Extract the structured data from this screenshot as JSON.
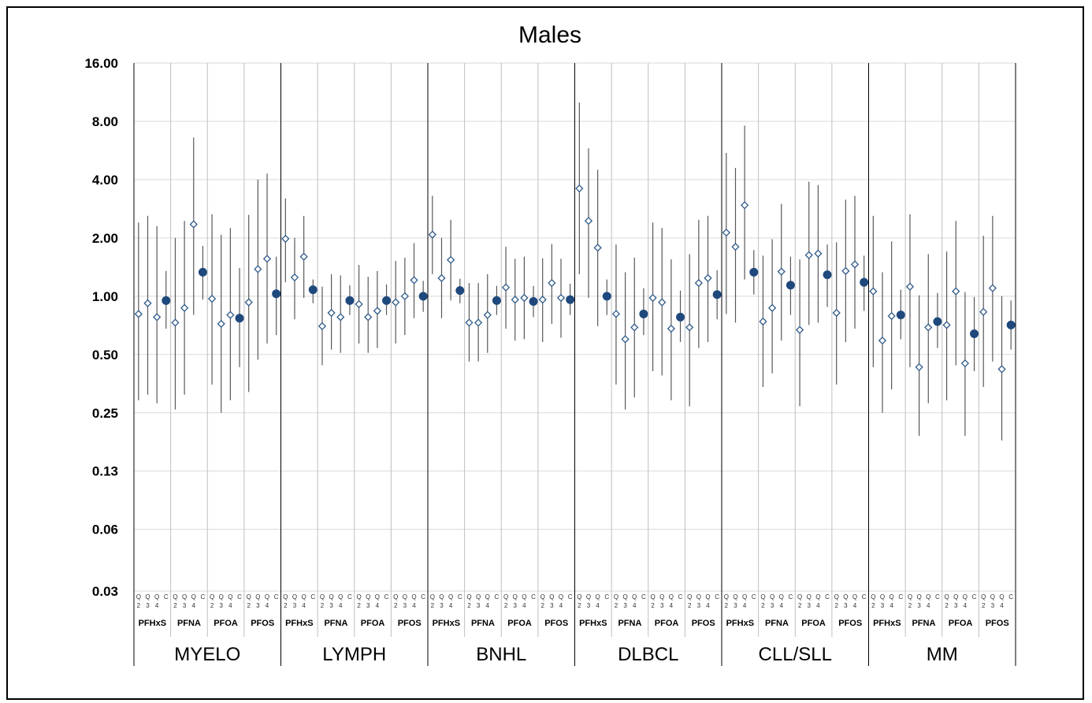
{
  "chart_data": {
    "type": "scatter",
    "title": "Males",
    "y_scale": "log2",
    "ylim": [
      0.03,
      16.0
    ],
    "y_ticks": [
      "16.00",
      "8.00",
      "4.00",
      "2.00",
      "1.00",
      "0.50",
      "0.25",
      "0.13",
      "0.06",
      "0.03"
    ],
    "grid": true,
    "point_labels": [
      [
        "Q",
        "2"
      ],
      [
        "Q",
        "3"
      ],
      [
        "Q",
        "4"
      ],
      [
        "C",
        ""
      ]
    ],
    "chemicals": [
      "PFHxS",
      "PFNA",
      "PFOA",
      "PFOS"
    ],
    "marker_legend": {
      "quartile": "open-diamond",
      "continuous": "filled-circle"
    },
    "groups": [
      {
        "name": "MYELO",
        "chemicals": [
          {
            "name": "PFHxS",
            "points": [
              [
                0.81,
                0.29,
                2.4
              ],
              [
                0.92,
                0.31,
                2.6
              ],
              [
                0.78,
                0.28,
                2.3
              ],
              [
                0.95,
                0.68,
                1.35
              ]
            ]
          },
          {
            "name": "PFNA",
            "points": [
              [
                0.73,
                0.26,
                2.0
              ],
              [
                0.87,
                0.31,
                2.45
              ],
              [
                2.35,
                0.8,
                6.6
              ],
              [
                1.33,
                0.96,
                1.82
              ]
            ]
          },
          {
            "name": "PFOA",
            "points": [
              [
                0.97,
                0.35,
                2.65
              ],
              [
                0.72,
                0.25,
                2.08
              ],
              [
                0.8,
                0.29,
                2.25
              ],
              [
                0.77,
                0.43,
                1.4
              ]
            ]
          },
          {
            "name": "PFOS",
            "points": [
              [
                0.93,
                0.32,
                2.63
              ],
              [
                1.38,
                0.47,
                4.0
              ],
              [
                1.56,
                0.57,
                4.3
              ],
              [
                1.03,
                0.63,
                1.6
              ]
            ]
          }
        ]
      },
      {
        "name": "LYMPH",
        "chemicals": [
          {
            "name": "PFHxS",
            "points": [
              [
                1.98,
                1.18,
                3.2
              ],
              [
                1.25,
                0.76,
                2.0
              ],
              [
                1.6,
                0.98,
                2.6
              ],
              [
                1.08,
                0.92,
                1.22
              ]
            ]
          },
          {
            "name": "PFNA",
            "points": [
              [
                0.7,
                0.44,
                1.12
              ],
              [
                0.82,
                0.53,
                1.3
              ],
              [
                0.78,
                0.51,
                1.28
              ],
              [
                0.95,
                0.8,
                1.14
              ]
            ]
          },
          {
            "name": "PFOA",
            "points": [
              [
                0.91,
                0.57,
                1.45
              ],
              [
                0.78,
                0.51,
                1.26
              ],
              [
                0.84,
                0.54,
                1.35
              ],
              [
                0.95,
                0.8,
                1.15
              ]
            ]
          },
          {
            "name": "PFOS",
            "points": [
              [
                0.93,
                0.57,
                1.52
              ],
              [
                1.0,
                0.63,
                1.58
              ],
              [
                1.21,
                0.77,
                1.88
              ],
              [
                1.0,
                0.83,
                1.2
              ]
            ]
          }
        ]
      },
      {
        "name": "BNHL",
        "chemicals": [
          {
            "name": "PFHxS",
            "points": [
              [
                2.08,
                1.3,
                3.3
              ],
              [
                1.24,
                0.77,
                2.0
              ],
              [
                1.54,
                0.95,
                2.48
              ],
              [
                1.07,
                0.92,
                1.23
              ]
            ]
          },
          {
            "name": "PFNA",
            "points": [
              [
                0.73,
                0.46,
                1.17
              ],
              [
                0.73,
                0.46,
                1.17
              ],
              [
                0.8,
                0.51,
                1.3
              ],
              [
                0.95,
                0.8,
                1.13
              ]
            ]
          },
          {
            "name": "PFOA",
            "points": [
              [
                1.11,
                0.68,
                1.8
              ],
              [
                0.96,
                0.59,
                1.56
              ],
              [
                0.98,
                0.6,
                1.6
              ],
              [
                0.94,
                0.78,
                1.13
              ]
            ]
          },
          {
            "name": "PFOS",
            "points": [
              [
                0.96,
                0.58,
                1.57
              ],
              [
                1.17,
                0.72,
                1.86
              ],
              [
                0.98,
                0.61,
                1.56
              ],
              [
                0.96,
                0.8,
                1.16
              ]
            ]
          }
        ]
      },
      {
        "name": "DLBCL",
        "chemicals": [
          {
            "name": "PFHxS",
            "points": [
              [
                3.6,
                1.3,
                10.0
              ],
              [
                2.45,
                0.98,
                5.8
              ],
              [
                1.78,
                0.7,
                4.5
              ],
              [
                1.0,
                0.8,
                1.22
              ]
            ]
          },
          {
            "name": "PFNA",
            "points": [
              [
                0.81,
                0.35,
                1.85
              ],
              [
                0.6,
                0.26,
                1.33
              ],
              [
                0.69,
                0.3,
                1.58
              ],
              [
                0.81,
                0.63,
                1.1
              ]
            ]
          },
          {
            "name": "PFOA",
            "points": [
              [
                0.98,
                0.41,
                2.4
              ],
              [
                0.93,
                0.39,
                2.25
              ],
              [
                0.68,
                0.29,
                1.55
              ],
              [
                0.78,
                0.58,
                1.07
              ]
            ]
          },
          {
            "name": "PFOS",
            "points": [
              [
                0.69,
                0.27,
                1.65
              ],
              [
                1.17,
                0.54,
                2.48
              ],
              [
                1.24,
                0.58,
                2.6
              ],
              [
                1.02,
                0.76,
                1.36
              ]
            ]
          }
        ]
      },
      {
        "name": "CLL/SLL",
        "chemicals": [
          {
            "name": "PFHxS",
            "points": [
              [
                2.13,
                0.81,
                5.5
              ],
              [
                1.8,
                0.73,
                4.6
              ],
              [
                2.95,
                1.22,
                7.6
              ],
              [
                1.33,
                1.02,
                1.73
              ]
            ]
          },
          {
            "name": "PFNA",
            "points": [
              [
                0.74,
                0.34,
                1.62
              ],
              [
                0.87,
                0.4,
                1.97
              ],
              [
                1.34,
                0.59,
                3.0
              ],
              [
                1.14,
                0.8,
                1.6
              ]
            ]
          },
          {
            "name": "PFOA",
            "points": [
              [
                0.67,
                0.27,
                1.55
              ],
              [
                1.63,
                0.71,
                3.9
              ],
              [
                1.66,
                0.73,
                3.75
              ],
              [
                1.29,
                0.88,
                1.85
              ]
            ]
          },
          {
            "name": "PFOS",
            "points": [
              [
                0.82,
                0.35,
                1.9
              ],
              [
                1.35,
                0.58,
                3.15
              ],
              [
                1.46,
                0.68,
                3.3
              ],
              [
                1.18,
                0.84,
                1.62
              ]
            ]
          }
        ]
      },
      {
        "name": "MM",
        "chemicals": [
          {
            "name": "PFHxS",
            "points": [
              [
                1.06,
                0.43,
                2.6
              ],
              [
                0.59,
                0.25,
                1.33
              ],
              [
                0.79,
                0.33,
                1.92
              ],
              [
                0.8,
                0.6,
                1.08
              ]
            ]
          },
          {
            "name": "PFNA",
            "points": [
              [
                1.12,
                0.43,
                2.65
              ],
              [
                0.43,
                0.19,
                1.01
              ],
              [
                0.69,
                0.28,
                1.65
              ],
              [
                0.74,
                0.54,
                1.04
              ]
            ]
          },
          {
            "name": "PFOA",
            "points": [
              [
                0.71,
                0.29,
                1.7
              ],
              [
                1.06,
                0.44,
                2.45
              ],
              [
                0.45,
                0.19,
                1.05
              ],
              [
                0.64,
                0.41,
                0.99
              ]
            ]
          },
          {
            "name": "PFOS",
            "points": [
              [
                0.83,
                0.34,
                2.05
              ],
              [
                1.1,
                0.46,
                2.6
              ],
              [
                0.42,
                0.18,
                1.0
              ],
              [
                0.71,
                0.53,
                0.95
              ]
            ]
          }
        ]
      }
    ]
  },
  "colors": {
    "diamond_stroke": "#2f5a88",
    "circle_fill": "#1f497d",
    "ci_line": "#595959",
    "grid": "#d9d9d9",
    "divider": "#000000"
  }
}
